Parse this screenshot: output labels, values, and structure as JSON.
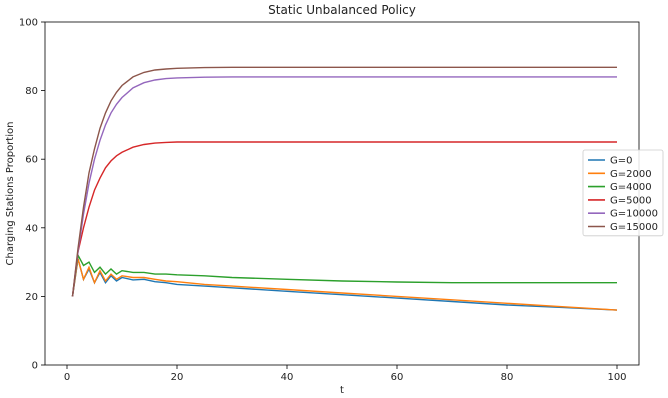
{
  "chart_data": {
    "type": "line",
    "title": "Static Unbalanced Policy",
    "xlabel": "t",
    "ylabel": "Charging Stations Proportion",
    "xlim": [
      -4,
      104
    ],
    "ylim": [
      0,
      100
    ],
    "xticks": [
      0,
      20,
      40,
      60,
      80,
      100
    ],
    "yticks": [
      0,
      20,
      40,
      60,
      80,
      100
    ],
    "grid": false,
    "legend_position": "right",
    "series": [
      {
        "name": "G=0",
        "color": "#1f77b4",
        "x": [
          1,
          2,
          3,
          4,
          5,
          6,
          7,
          8,
          9,
          10,
          12,
          14,
          16,
          18,
          20,
          25,
          30,
          40,
          50,
          60,
          70,
          80,
          90,
          100
        ],
        "y": [
          20,
          31,
          25,
          28,
          24,
          27,
          24,
          26,
          24.5,
          25.5,
          24.8,
          25,
          24.3,
          24,
          23.5,
          23,
          22.5,
          21.5,
          20.5,
          19.5,
          18.5,
          17.5,
          16.8,
          16
        ]
      },
      {
        "name": "G=2000",
        "color": "#ff7f0e",
        "x": [
          1,
          2,
          3,
          4,
          5,
          6,
          7,
          8,
          9,
          10,
          12,
          14,
          16,
          18,
          20,
          25,
          30,
          40,
          50,
          60,
          70,
          80,
          90,
          100
        ],
        "y": [
          20,
          31,
          25,
          28.5,
          24,
          27.5,
          24.5,
          26.5,
          25,
          26,
          25.5,
          25.5,
          25,
          24.5,
          24.3,
          23.5,
          23,
          22,
          21,
          20,
          19,
          18,
          17,
          16
        ]
      },
      {
        "name": "G=4000",
        "color": "#2ca02c",
        "x": [
          1,
          2,
          3,
          4,
          5,
          6,
          7,
          8,
          9,
          10,
          12,
          14,
          16,
          18,
          20,
          25,
          30,
          40,
          50,
          60,
          70,
          80,
          90,
          100
        ],
        "y": [
          20,
          32,
          29,
          30,
          27,
          28.5,
          26.5,
          28,
          26.5,
          27.5,
          27,
          27,
          26.5,
          26.5,
          26.3,
          26,
          25.5,
          25,
          24.5,
          24.2,
          24,
          24,
          24,
          24
        ]
      },
      {
        "name": "G=5000",
        "color": "#d62728",
        "x": [
          1,
          2,
          3,
          4,
          5,
          6,
          7,
          8,
          9,
          10,
          12,
          14,
          16,
          18,
          20,
          25,
          30,
          40,
          50,
          60,
          70,
          80,
          90,
          100
        ],
        "y": [
          20,
          33,
          40,
          46,
          51,
          54.5,
          57.5,
          59.5,
          61,
          62,
          63.5,
          64.3,
          64.7,
          64.9,
          65,
          65,
          65,
          65,
          65,
          65,
          65,
          65,
          65,
          65
        ]
      },
      {
        "name": "G=10000",
        "color": "#9467bd",
        "x": [
          1,
          2,
          3,
          4,
          5,
          6,
          7,
          8,
          9,
          10,
          12,
          14,
          16,
          18,
          20,
          25,
          30,
          40,
          50,
          60,
          70,
          80,
          90,
          100
        ],
        "y": [
          20,
          33,
          44,
          53,
          60,
          65.5,
          70,
          73.5,
          76,
          78,
          80.8,
          82.3,
          83.1,
          83.5,
          83.7,
          83.9,
          84,
          84,
          84,
          84,
          84,
          84,
          84,
          84
        ]
      },
      {
        "name": "G=15000",
        "color": "#8c564b",
        "x": [
          1,
          2,
          3,
          4,
          5,
          6,
          7,
          8,
          9,
          10,
          12,
          14,
          16,
          18,
          20,
          25,
          30,
          40,
          50,
          60,
          70,
          80,
          90,
          100
        ],
        "y": [
          20,
          34,
          46,
          56,
          63,
          69,
          73.5,
          77,
          79.5,
          81.5,
          84,
          85.3,
          86,
          86.3,
          86.5,
          86.7,
          86.8,
          86.8,
          86.8,
          86.8,
          86.8,
          86.8,
          86.8,
          86.8
        ]
      }
    ]
  }
}
